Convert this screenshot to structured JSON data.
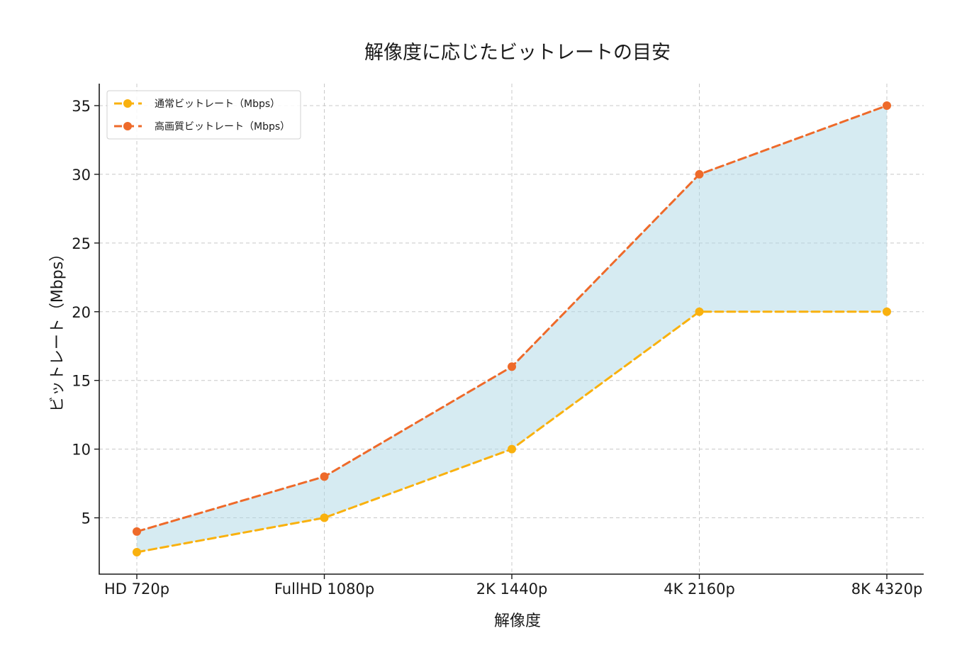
{
  "chart_data": {
    "type": "line",
    "title": "解像度に応じたビットレートの目安",
    "xlabel": "解像度",
    "ylabel": "ビットレート（Mbps）",
    "categories": [
      "HD 720p",
      "FullHD 1080p",
      "2K 1440p",
      "4K 2160p",
      "8K 4320p"
    ],
    "series": [
      {
        "name": "通常ビットレート（Mbps）",
        "values": [
          2.5,
          5,
          10,
          20,
          20
        ],
        "color": "#F9B10E"
      },
      {
        "name": "高画質ビットレート（Mbps）",
        "values": [
          4,
          8,
          16,
          30,
          35
        ],
        "color": "#EE6A2A"
      }
    ],
    "fill_between": {
      "color": "#add8e6",
      "opacity": 0.5
    },
    "ylim": [
      0.9,
      36.6
    ],
    "yticks": [
      5,
      10,
      15,
      20,
      25,
      30,
      35
    ],
    "grid": true,
    "line_style": "dashed",
    "legend": "top-left"
  }
}
